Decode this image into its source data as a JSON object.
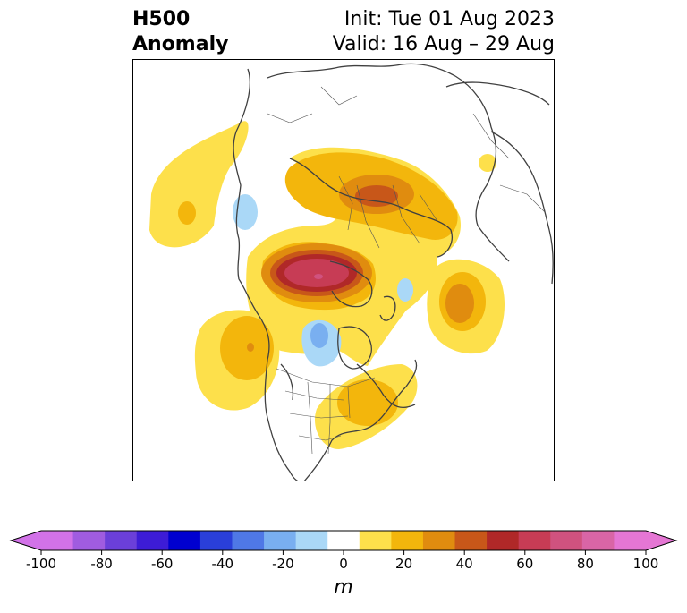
{
  "title": {
    "line1": "H500",
    "line2": "Anomaly",
    "init": "Init: Tue 01 Aug 2023",
    "valid": "Valid: 16 Aug – 29 Aug"
  },
  "colorbar": {
    "unit": "m",
    "ticks": [
      "-100",
      "-80",
      "-60",
      "-40",
      "-20",
      "0",
      "20",
      "40",
      "60",
      "80",
      "100"
    ],
    "levels": [
      -100,
      -90,
      -80,
      -70,
      -60,
      -50,
      -40,
      -30,
      -20,
      -10,
      10,
      20,
      30,
      40,
      50,
      60,
      70,
      80,
      90,
      100
    ],
    "colors": [
      "#d272e8",
      "#a05ce0",
      "#6b3fd9",
      "#3d1cd6",
      "#0000d0",
      "#2a3fd9",
      "#4f78e6",
      "#79aff0",
      "#aad8f7",
      "#ffffff",
      "#fde04b",
      "#f3b60c",
      "#e08c0f",
      "#c85719",
      "#b02828",
      "#c73c55",
      "#d0527f",
      "#d965a6",
      "#e576d4"
    ],
    "under_color": "#d272e8",
    "over_color": "#e576d4"
  },
  "map": {
    "projection": "north-polar-stereographic",
    "land_outline_color": "#404040",
    "anomalies": [
      {
        "region": "eastern-siberia-arctic",
        "peak_m": 70,
        "sign": "positive"
      },
      {
        "region": "northern-europe-russia",
        "peak_m": 40,
        "sign": "positive"
      },
      {
        "region": "greenland-atlantic",
        "peak_m": 40,
        "sign": "positive"
      },
      {
        "region": "north-pacific",
        "peak_m": 20,
        "sign": "positive"
      },
      {
        "region": "western-north-america",
        "peak_m": 30,
        "sign": "positive"
      },
      {
        "region": "eastern-united-states",
        "peak_m": 20,
        "sign": "positive"
      },
      {
        "region": "hudson-bay",
        "peak_m": -20,
        "sign": "negative"
      },
      {
        "region": "east-asia-coast",
        "peak_m": -10,
        "sign": "negative"
      },
      {
        "region": "north-atlantic",
        "peak_m": -10,
        "sign": "negative"
      }
    ]
  }
}
